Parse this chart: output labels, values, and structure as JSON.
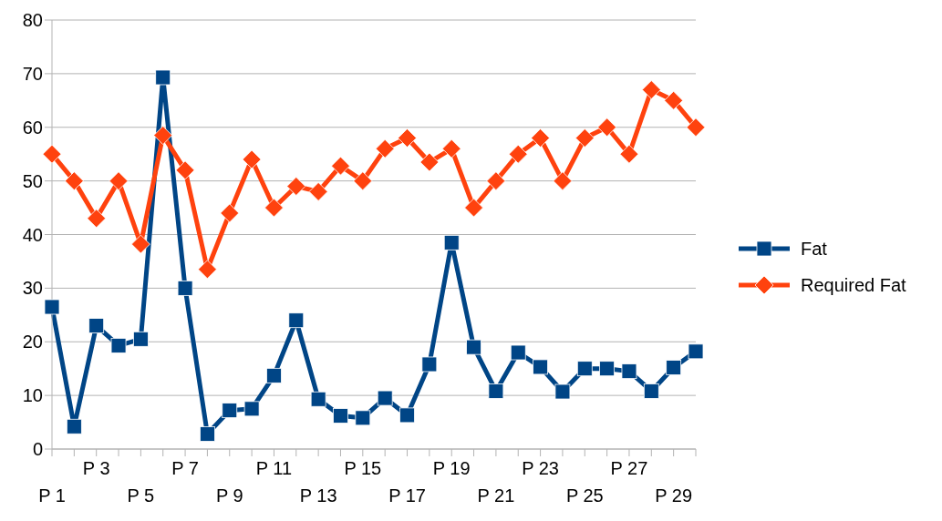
{
  "chart_data": {
    "type": "line",
    "categories": [
      "P 1",
      null,
      "P 3",
      null,
      "P 5",
      null,
      "P 7",
      null,
      "P 9",
      null,
      "P 11",
      null,
      "P 13",
      null,
      "P 15",
      null,
      "P 17",
      null,
      "P 19",
      null,
      "P 21",
      null,
      "P 23",
      null,
      "P 25",
      null,
      "P 27",
      null,
      "P 29",
      null
    ],
    "series": [
      {
        "name": "Fat",
        "color": "#004586",
        "marker": "square",
        "values": [
          26.5,
          4.2,
          23,
          19.3,
          20.5,
          69.3,
          30,
          2.8,
          7.2,
          7.5,
          13.7,
          24,
          9.3,
          6.2,
          5.8,
          9.5,
          6.3,
          15.8,
          38.5,
          19,
          10.8,
          18,
          15.3,
          10.7,
          15,
          15,
          14.5,
          10.8,
          15.2,
          18.2
        ]
      },
      {
        "name": "Required Fat",
        "color": "#ff420e",
        "marker": "diamond",
        "values": [
          55,
          50,
          43,
          50,
          38.2,
          58.5,
          52,
          33.5,
          44,
          54,
          45,
          49,
          48,
          52.8,
          50,
          56,
          58,
          53.5,
          56,
          45,
          50,
          55,
          58,
          50,
          58,
          60,
          55,
          67,
          65,
          60
        ]
      }
    ],
    "ylim": [
      0,
      80
    ],
    "yticks": [
      0,
      10,
      20,
      30,
      40,
      50,
      60,
      70,
      80
    ],
    "grid": "y",
    "legend": "right",
    "line_style": "solid"
  }
}
